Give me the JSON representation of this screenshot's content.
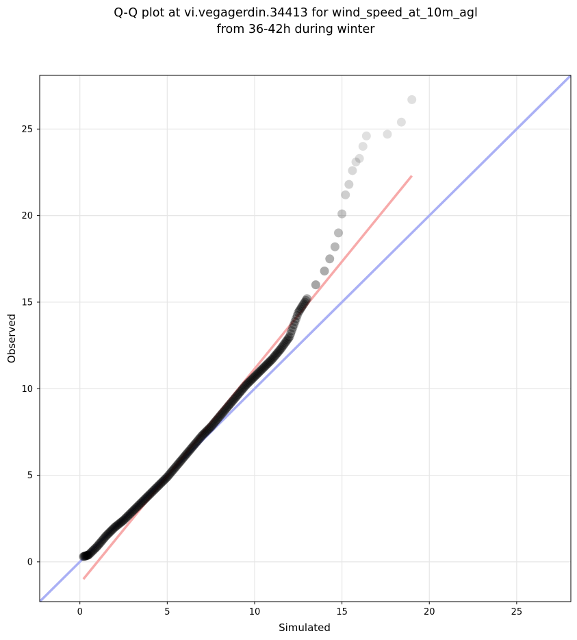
{
  "chart_data": {
    "type": "scatter",
    "title_lines": [
      "Q-Q plot at vi.vegagerdin.34413 for wind_speed_at_10m_agl",
      "from 36-42h during winter"
    ],
    "xlabel": "Simulated",
    "ylabel": "Observed",
    "xlim": [
      -2.3,
      28.1
    ],
    "ylim": [
      -2.3,
      28.1
    ],
    "xticks": [
      0,
      5,
      10,
      15,
      20,
      25
    ],
    "yticks": [
      0,
      5,
      10,
      15,
      20,
      25
    ],
    "grid": true,
    "colors": {
      "points": "#000000",
      "identity_line": "#aab0f5",
      "fit_line": "#f7aaaa",
      "grid": "#e6e6e6"
    },
    "identity_line": {
      "x": [
        -2.3,
        28.1
      ],
      "y": [
        -2.3,
        28.1
      ]
    },
    "fit_line": {
      "x": [
        0.2,
        19.0
      ],
      "y": [
        -1.0,
        22.3
      ]
    },
    "series": [
      {
        "x": [
          0.2,
          0.5,
          1.0,
          1.5,
          2.0,
          2.5,
          3.0,
          3.5,
          4.0,
          4.5,
          5.0,
          5.5,
          6.0,
          6.5,
          7.0,
          7.5,
          8.0,
          8.5,
          9.0,
          9.5,
          10.0,
          10.5,
          11.0,
          11.5,
          12.0,
          12.5,
          13.0,
          13.5,
          14.0,
          14.3,
          14.6,
          14.8,
          15.0,
          15.2,
          15.4,
          15.6,
          15.8,
          16.0,
          16.2,
          16.4,
          17.6,
          18.4,
          19.0
        ],
        "y": [
          0.3,
          0.4,
          0.9,
          1.5,
          2.0,
          2.4,
          2.9,
          3.4,
          3.9,
          4.4,
          4.9,
          5.5,
          6.1,
          6.7,
          7.3,
          7.8,
          8.4,
          9.0,
          9.6,
          10.2,
          10.7,
          11.2,
          11.7,
          12.3,
          13.0,
          14.4,
          15.2,
          16.0,
          16.8,
          17.5,
          18.2,
          19.0,
          20.1,
          21.2,
          21.8,
          22.6,
          23.1,
          23.3,
          24.0,
          24.6,
          24.7,
          25.4,
          26.7
        ]
      }
    ]
  }
}
